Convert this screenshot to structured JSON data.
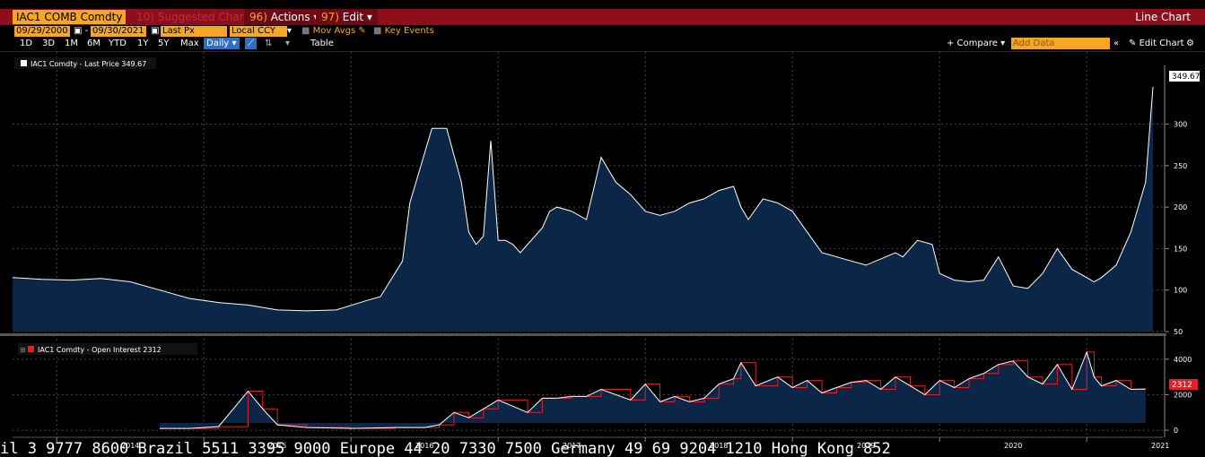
{
  "header": {
    "security": "IAC1 COMB Comdty",
    "suggested": "Suggested Charts",
    "suggested_num": "10",
    "actions_num": "96",
    "actions": "Actions",
    "edit_num": "97",
    "edit": "Edit",
    "title": "Line Chart"
  },
  "controls": {
    "start_date": "09/29/2000",
    "end_date": "09/30/2021",
    "field": "Last Px",
    "currency": "Local CCY",
    "mov_avgs": "Mov Avgs",
    "key_events": "Key Events",
    "ranges": [
      "1D",
      "3D",
      "1M",
      "6M",
      "YTD",
      "1Y",
      "5Y",
      "Max"
    ],
    "frequency": "Daily",
    "table": "Table",
    "compare": "+ Compare",
    "add_data": "Add Data",
    "edit_chart": "Edit Chart"
  },
  "colors": {
    "accent": "#f5a623",
    "bar": "#8e0f1b",
    "area": "#0c2648",
    "line": "#ffffff",
    "oi_step": "#e0202a"
  },
  "chart_data": [
    {
      "type": "area",
      "legend": "IAC1 Comdty - Last Price 349.67",
      "last_value": "349.67",
      "ylim": [
        50,
        360
      ],
      "yticks": [
        50,
        100,
        150,
        200,
        250,
        300
      ],
      "x": [
        2013.7,
        2013.9,
        2014.1,
        2014.3,
        2014.5,
        2014.7,
        2014.9,
        2015.1,
        2015.3,
        2015.5,
        2015.7,
        2015.9,
        2016.1,
        2016.2,
        2016.35,
        2016.4,
        2016.55,
        2016.65,
        2016.75,
        2016.8,
        2016.85,
        2016.9,
        2016.95,
        2017.0,
        2017.05,
        2017.1,
        2017.15,
        2017.3,
        2017.35,
        2017.4,
        2017.5,
        2017.6,
        2017.7,
        2017.8,
        2017.9,
        2018.0,
        2018.1,
        2018.2,
        2018.3,
        2018.4,
        2018.5,
        2018.6,
        2018.65,
        2018.7,
        2018.8,
        2018.9,
        2019.0,
        2019.1,
        2019.2,
        2019.4,
        2019.5,
        2019.7,
        2019.75,
        2019.85,
        2019.95,
        2020.0,
        2020.1,
        2020.2,
        2020.3,
        2020.4,
        2020.5,
        2020.6,
        2020.7,
        2020.8,
        2020.9,
        2021.0,
        2021.05,
        2021.1,
        2021.2,
        2021.3,
        2021.35,
        2021.4,
        2021.45
      ],
      "values": [
        115,
        113,
        112,
        114,
        110,
        100,
        90,
        85,
        82,
        76,
        75,
        76,
        87,
        92,
        135,
        205,
        295,
        295,
        230,
        170,
        155,
        165,
        280,
        160,
        160,
        155,
        145,
        175,
        195,
        200,
        195,
        185,
        260,
        230,
        215,
        195,
        190,
        195,
        205,
        210,
        220,
        225,
        200,
        185,
        210,
        205,
        195,
        170,
        145,
        135,
        130,
        145,
        140,
        160,
        155,
        120,
        112,
        110,
        112,
        140,
        105,
        102,
        120,
        150,
        125,
        115,
        110,
        115,
        130,
        170,
        200,
        230,
        345
      ]
    },
    {
      "type": "area",
      "legend": "IAC1 Comdty - Open Interest 2312",
      "last_value": "2312",
      "ylim": [
        -400,
        4800
      ],
      "yticks": [
        0,
        2000,
        4000
      ],
      "x": [
        2014.7,
        2014.9,
        2015.1,
        2015.3,
        2015.4,
        2015.5,
        2015.7,
        2016.0,
        2016.3,
        2016.5,
        2016.6,
        2016.7,
        2016.8,
        2016.9,
        2017.0,
        2017.2,
        2017.3,
        2017.4,
        2017.5,
        2017.6,
        2017.7,
        2017.9,
        2018.0,
        2018.1,
        2018.2,
        2018.3,
        2018.4,
        2018.5,
        2018.6,
        2018.65,
        2018.75,
        2018.9,
        2019.0,
        2019.1,
        2019.2,
        2019.3,
        2019.4,
        2019.5,
        2019.6,
        2019.7,
        2019.8,
        2019.9,
        2020.0,
        2020.1,
        2020.2,
        2020.3,
        2020.4,
        2020.5,
        2020.6,
        2020.7,
        2020.8,
        2020.9,
        2021.0,
        2021.05,
        2021.1,
        2021.2,
        2021.3,
        2021.35,
        2021.4
      ],
      "values": [
        100,
        100,
        200,
        2200,
        1200,
        300,
        150,
        100,
        150,
        150,
        300,
        1000,
        700,
        1200,
        1700,
        1000,
        1800,
        1800,
        1900,
        1900,
        2300,
        1700,
        2600,
        1600,
        1900,
        1600,
        1800,
        2600,
        2900,
        3800,
        2500,
        3000,
        2400,
        2800,
        2100,
        2400,
        2700,
        2800,
        2300,
        3000,
        2500,
        2000,
        2800,
        2400,
        2900,
        3200,
        3700,
        3900,
        3000,
        2600,
        3700,
        2300,
        4400,
        3000,
        2500,
        2800,
        2300,
        2312,
        2312
      ]
    }
  ],
  "x_axis": {
    "labels": [
      "2014",
      "2015",
      "2016",
      "2017",
      "2018",
      "2019",
      "2020",
      "2021"
    ]
  },
  "ticker": {
    "text": "il 3 9777 8600 Brazil 5511 3395 9000 Europe 44 20 7330 7500 Germany 49 69 9204 1210 Hong Kong 852"
  }
}
